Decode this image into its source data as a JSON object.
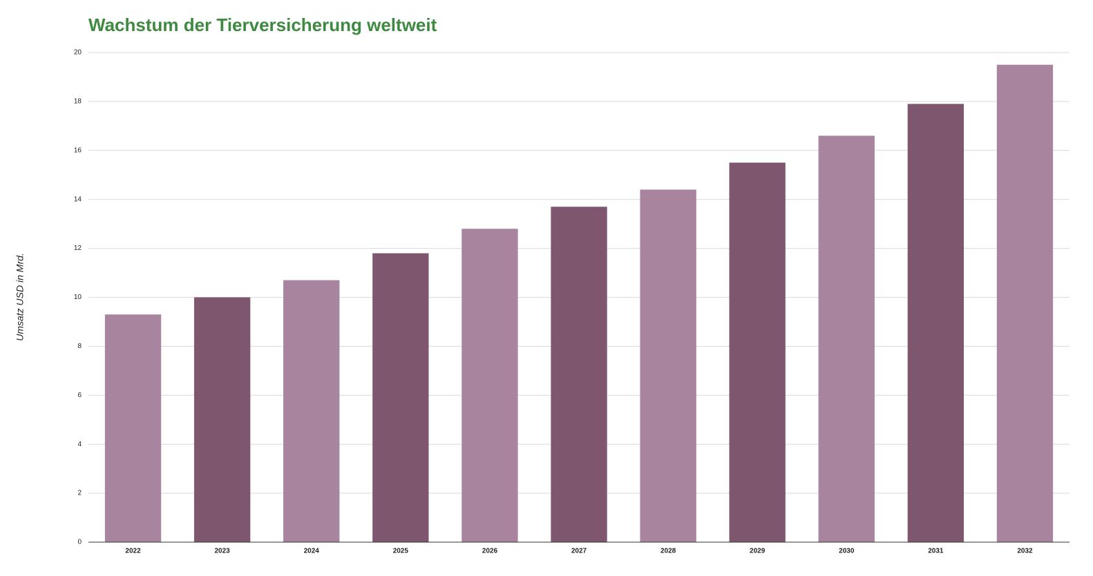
{
  "chart_data": {
    "type": "bar",
    "title": "Wachstum der Tierversicherung weltweit",
    "y_label": "Umsatz USD in Mrd.",
    "categories": [
      "2022",
      "2023",
      "2024",
      "2025",
      "2026",
      "2027",
      "2028",
      "2029",
      "2030",
      "2031",
      "2032"
    ],
    "values": [
      9.3,
      10.0,
      10.7,
      11.8,
      12.8,
      13.7,
      14.4,
      15.5,
      16.6,
      17.9,
      19.5
    ],
    "colors": [
      "#a8849f",
      "#7e576f",
      "#a8849f",
      "#7e576f",
      "#a8849f",
      "#7e576f",
      "#a8849f",
      "#7e576f",
      "#a8849f",
      "#7e576f",
      "#a8849f"
    ],
    "ylim": [
      0,
      20
    ],
    "yticks": [
      0,
      2,
      4,
      6,
      8,
      10,
      12,
      14,
      16,
      18,
      20
    ],
    "grid": true
  }
}
